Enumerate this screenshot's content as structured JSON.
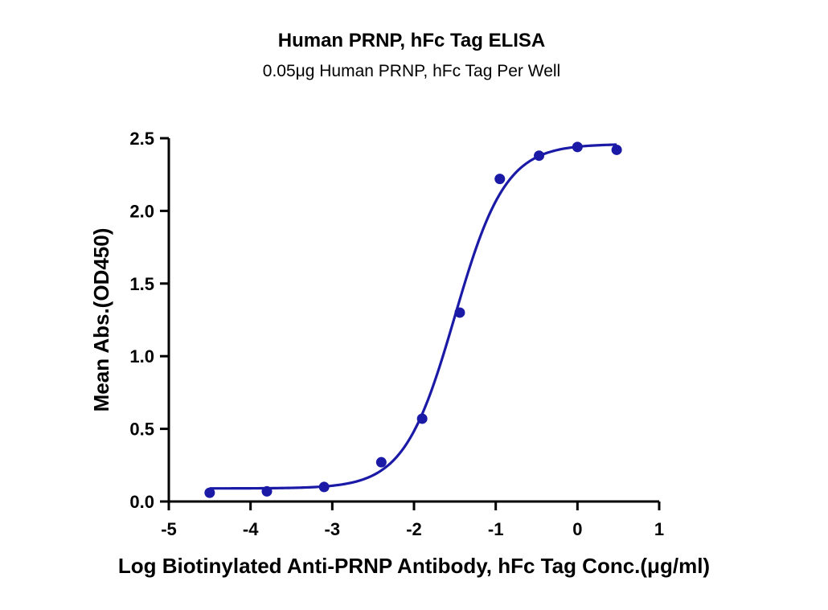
{
  "chart_data": {
    "type": "scatter",
    "title": "Human PRNP, hFc Tag ELISA",
    "subtitle": "0.05μg Human PRNP, hFc Tag Per Well",
    "xlabel": "Log Biotinylated Anti-PRNP Antibody, hFc Tag Conc.(μg/ml)",
    "ylabel": "Mean Abs.(OD450)",
    "xlim": [
      -5,
      1
    ],
    "ylim": [
      0,
      2.5
    ],
    "x_ticks": [
      "-5",
      "-4",
      "-3",
      "-2",
      "-1",
      "0",
      "1"
    ],
    "y_ticks": [
      "0.0",
      "0.5",
      "1.0",
      "1.5",
      "2.0",
      "2.5"
    ],
    "grid": false,
    "legend": "none",
    "series": [
      {
        "points": [
          {
            "x": -4.5,
            "y": 0.06
          },
          {
            "x": -3.8,
            "y": 0.07
          },
          {
            "x": -3.1,
            "y": 0.1
          },
          {
            "x": -2.4,
            "y": 0.27
          },
          {
            "x": -1.9,
            "y": 0.57
          },
          {
            "x": -1.44,
            "y": 1.3
          },
          {
            "x": -0.95,
            "y": 2.22
          },
          {
            "x": -0.47,
            "y": 2.38
          },
          {
            "x": 0.0,
            "y": 2.44
          },
          {
            "x": 0.48,
            "y": 2.42
          }
        ],
        "fit_curve": {
          "model": "4PL",
          "bottom": 0.09,
          "top": 2.46,
          "logEC50": -1.5,
          "hillslope": 1.4
        }
      }
    ],
    "colors": {
      "series": "#1a1aa6",
      "axis": "#000000"
    }
  }
}
